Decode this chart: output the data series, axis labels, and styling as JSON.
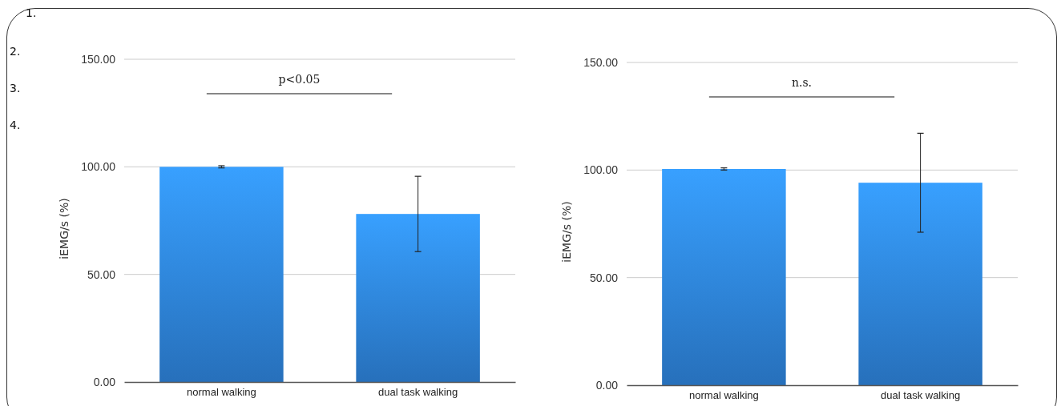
{
  "chart_data": [
    {
      "type": "bar",
      "ylabel": "iEMG/s (%)",
      "categories": [
        "normal walking",
        "dual task walking"
      ],
      "values": [
        100,
        78.1
      ],
      "errors": [
        0.5,
        17.5
      ],
      "color": "#2f86e0",
      "ylim": [
        0,
        150
      ],
      "yticks": [
        {
          "value": 0,
          "label": "0.00"
        },
        {
          "value": 50,
          "label": "50.00"
        },
        {
          "value": 100,
          "label": "100.00"
        },
        {
          "value": 150,
          "label": "150.00"
        }
      ],
      "grid": "y",
      "annotations": [
        "p<0.05",
        "1.",
        "2.",
        "3.",
        "4."
      ]
    },
    {
      "type": "bar",
      "ylabel": "iEMG/s (%)",
      "categories": [
        "normal walking",
        "dual task walking"
      ],
      "values": [
        100.5,
        94.1
      ],
      "errors": [
        0.5,
        23
      ],
      "color": "#2f86e0",
      "ylim": [
        0,
        150
      ],
      "yticks": [
        {
          "value": 0,
          "label": "0.00"
        },
        {
          "value": 50,
          "label": "50.00"
        },
        {
          "value": 100,
          "label": "100.00"
        },
        {
          "value": 150,
          "label": "150.00"
        }
      ],
      "grid": "y",
      "annotations": [
        "n.s."
      ]
    }
  ]
}
